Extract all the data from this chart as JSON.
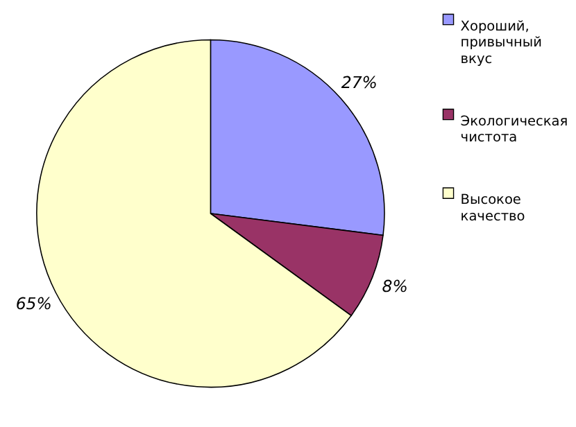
{
  "chart_data": {
    "type": "pie",
    "categories": [
      "Хороший, привычный вкус",
      "Экологическая чистота",
      "Высокое качество"
    ],
    "values": [
      27,
      8,
      65
    ],
    "colors": [
      "#9999ff",
      "#993366",
      "#ffffcc"
    ],
    "value_labels": [
      "27%",
      "8%",
      "65%"
    ],
    "legend": "right"
  }
}
